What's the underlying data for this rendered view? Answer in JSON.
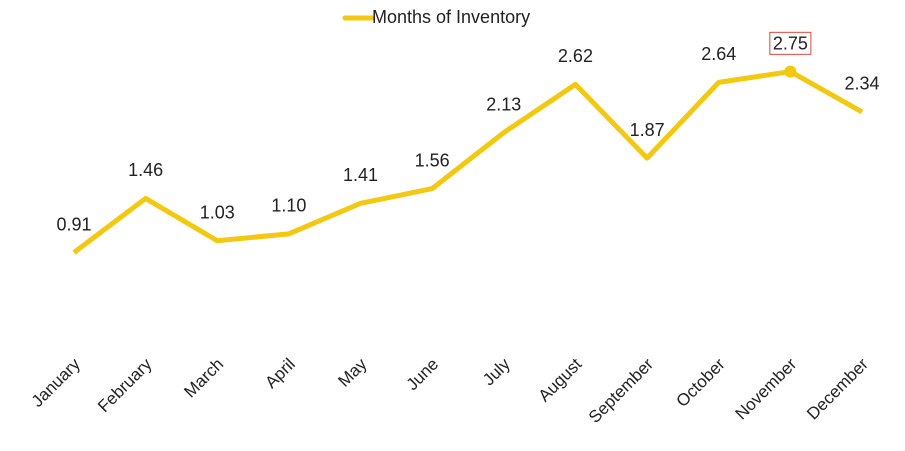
{
  "chart_data": {
    "type": "line",
    "categories": [
      "January",
      "February",
      "March",
      "April",
      "May",
      "June",
      "July",
      "August",
      "September",
      "October",
      "November",
      "December"
    ],
    "series": [
      {
        "name": "Months of Inventory",
        "color": "#f2c811",
        "values": [
          0.91,
          1.46,
          1.03,
          1.1,
          1.41,
          1.56,
          2.13,
          2.62,
          1.87,
          2.64,
          2.75,
          2.34
        ],
        "value_labels": [
          "0.91",
          "1.46",
          "1.03",
          "1.10",
          "1.41",
          "1.56",
          "2.13",
          "2.62",
          "1.87",
          "2.64",
          "2.75",
          "2.34"
        ]
      }
    ],
    "ylim": [
      0,
      3
    ],
    "highlight_index": 10,
    "legend": "top"
  }
}
